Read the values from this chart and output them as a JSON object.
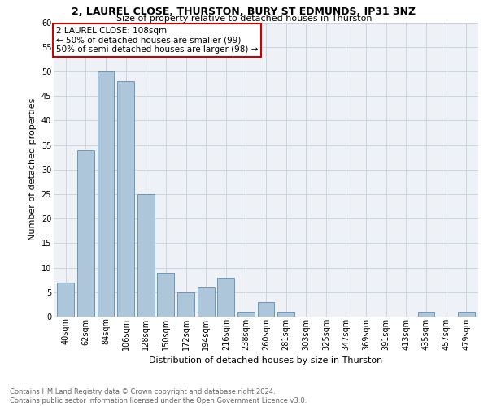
{
  "title1": "2, LAUREL CLOSE, THURSTON, BURY ST EDMUNDS, IP31 3NZ",
  "title2": "Size of property relative to detached houses in Thurston",
  "xlabel": "Distribution of detached houses by size in Thurston",
  "ylabel": "Number of detached properties",
  "footnote": "Contains HM Land Registry data © Crown copyright and database right 2024.\nContains public sector information licensed under the Open Government Licence v3.0.",
  "annotation_line1": "2 LAUREL CLOSE: 108sqm",
  "annotation_line2": "← 50% of detached houses are smaller (99)",
  "annotation_line3": "50% of semi-detached houses are larger (98) →",
  "bar_labels": [
    "40sqm",
    "62sqm",
    "84sqm",
    "106sqm",
    "128sqm",
    "150sqm",
    "172sqm",
    "194sqm",
    "216sqm",
    "238sqm",
    "260sqm",
    "281sqm",
    "303sqm",
    "325sqm",
    "347sqm",
    "369sqm",
    "391sqm",
    "413sqm",
    "435sqm",
    "457sqm",
    "479sqm"
  ],
  "bar_values": [
    7,
    34,
    50,
    48,
    25,
    9,
    5,
    6,
    8,
    1,
    3,
    1,
    0,
    0,
    0,
    0,
    0,
    0,
    1,
    0,
    1
  ],
  "bar_color": "#aec6d9",
  "bar_edge_color": "#5b8db8",
  "ylim": [
    0,
    60
  ],
  "yticks": [
    0,
    5,
    10,
    15,
    20,
    25,
    30,
    35,
    40,
    45,
    50,
    55,
    60
  ],
  "annotation_box_color": "#cc0000",
  "background_color": "#eef2f7",
  "grid_color": "#c8d0da",
  "title1_fontsize": 9,
  "title2_fontsize": 8,
  "ylabel_fontsize": 8,
  "xlabel_fontsize": 8,
  "tick_fontsize": 7,
  "annot_fontsize": 7.5,
  "footnote_fontsize": 6
}
